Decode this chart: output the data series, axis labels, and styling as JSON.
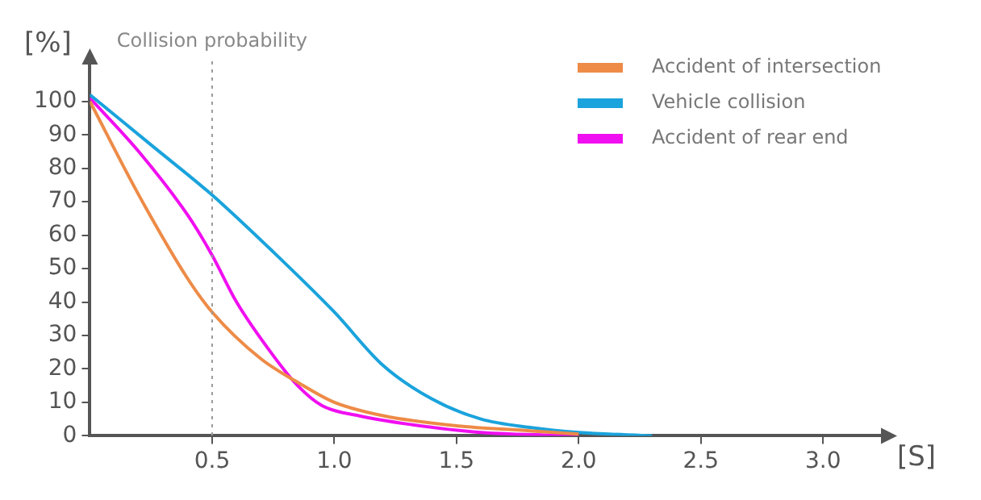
{
  "chart_data": {
    "type": "line",
    "xlabel": "[S]",
    "ylabel": "[%]",
    "xlim": [
      0,
      3.25
    ],
    "xticks": [
      {
        "value": 0.5,
        "label": "0.5"
      },
      {
        "value": 1,
        "label": "1.0"
      },
      {
        "value": 1.5,
        "label": "1.5"
      },
      {
        "value": 2,
        "label": "2.0"
      },
      {
        "value": 2.5,
        "label": "2.5"
      },
      {
        "value": 3,
        "label": "3.0"
      }
    ],
    "ylim": [
      0,
      112
    ],
    "yticks": [
      0,
      10,
      20,
      30,
      40,
      50,
      60,
      70,
      80,
      90,
      100
    ],
    "grid": false,
    "legend": "top right",
    "ref_lines": [
      {
        "axis": "x",
        "value": 0.5,
        "label": "Collision probability",
        "color": "#999999",
        "line_style": "dotted"
      }
    ],
    "series": [
      {
        "name": "Accident of intersection",
        "color": "#ed8b47",
        "x": [
          0,
          0.2,
          0.4,
          0.5,
          0.7,
          0.85,
          1,
          1.2,
          1.5,
          1.8,
          2
        ],
        "values": [
          100,
          72,
          47,
          37,
          23,
          16,
          10,
          6,
          3,
          1.5,
          0.5
        ]
      },
      {
        "name": "Vehicle collision",
        "color": "#1aa3dc",
        "x": [
          0,
          0.25,
          0.5,
          0.75,
          1,
          1.2,
          1.4,
          1.6,
          1.8,
          2,
          2.3
        ],
        "values": [
          102,
          87,
          72,
          55,
          37,
          21,
          11,
          5,
          2.5,
          1,
          0
        ]
      },
      {
        "name": "Accident of rear end",
        "color": "#f00ff0",
        "x": [
          0,
          0.2,
          0.4,
          0.5,
          0.6,
          0.75,
          0.85,
          0.95,
          1.1,
          1.3,
          1.6,
          2
        ],
        "values": [
          101,
          85,
          66,
          54,
          40,
          24,
          15,
          9,
          6,
          3.5,
          1,
          0
        ]
      }
    ]
  }
}
